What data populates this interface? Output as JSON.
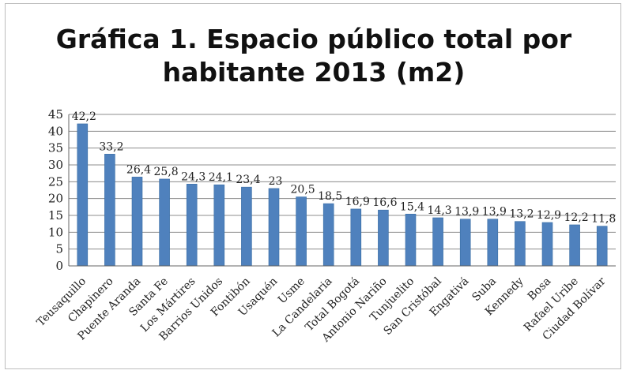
{
  "chart_data": {
    "type": "bar",
    "title_line1": "Gráfica 1. Espacio público total por",
    "title_line2": "habitante 2013 (m2)",
    "categories": [
      "Teusaquillo",
      "Chapinero",
      "Puente Aranda",
      "Santa Fe",
      "Los Mártires",
      "Barrios Unidos",
      "Fontibón",
      "Usaquén",
      "Usme",
      "La Candelaria",
      "Total Bogotá",
      "Antonio Nariño",
      "Tunjuelito",
      "San Cristóbal",
      "Engativá",
      "Suba",
      "Kennedy",
      "Bosa",
      "Rafael Uribe",
      "Ciudad Bolívar"
    ],
    "values": [
      42.2,
      33.2,
      26.4,
      25.8,
      24.3,
      24.1,
      23.4,
      23,
      20.5,
      18.5,
      16.9,
      16.6,
      15.4,
      14.3,
      13.9,
      13.9,
      13.2,
      12.9,
      12.2,
      11.8
    ],
    "value_labels": [
      "42,2",
      "33,2",
      "26,4",
      "25,8",
      "24,3",
      "24,1",
      "23,4",
      "23",
      "20,5",
      "18,5",
      "16,9",
      "16,6",
      "15,4",
      "14,3",
      "13,9",
      "13,9",
      "13,2",
      "12,9",
      "12,2",
      "11,8"
    ],
    "ylim": [
      0,
      45
    ],
    "y_ticks": [
      "0",
      "5",
      "10",
      "15",
      "20",
      "25",
      "30",
      "35",
      "40",
      "45"
    ],
    "grid": true,
    "xlabel": "",
    "ylabel": "",
    "colors": {
      "bar": "#4f81bd",
      "bar_edge": "#3a6ea5",
      "grid": "#8c8c8c",
      "axis": "#666666"
    }
  }
}
